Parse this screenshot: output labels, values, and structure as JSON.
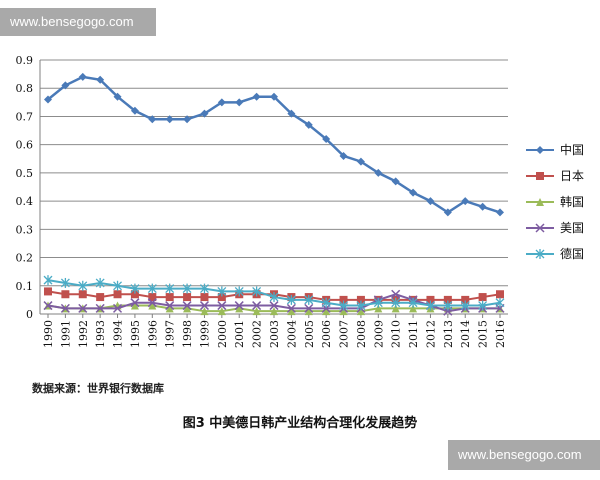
{
  "watermark": {
    "text": "www.bensegogo.com"
  },
  "source_note": "数据来源：世界银行数据库",
  "caption": "图3  中美德日韩产业结构合理化发展趋势",
  "chart_data": {
    "type": "line",
    "title": "",
    "xlabel": "",
    "ylabel": "",
    "ylim": [
      0,
      0.9
    ],
    "yticks": [
      "0",
      "0.1",
      "0.2",
      "0.3",
      "0.4",
      "0.5",
      "0.6",
      "0.7",
      "0.8",
      "0.9"
    ],
    "x": [
      "1990",
      "1991",
      "1992",
      "1993",
      "1994",
      "1995",
      "1996",
      "1997",
      "1998",
      "1999",
      "2000",
      "2001",
      "2002",
      "2003",
      "2004",
      "2005",
      "2006",
      "2007",
      "2008",
      "2009",
      "2010",
      "2011",
      "2012",
      "2013",
      "2014",
      "2015",
      "2016"
    ],
    "grid": "horizontal",
    "legend_position": "right",
    "series": [
      {
        "name": "中国",
        "color": "#4a7ab8",
        "marker": "diamond",
        "values": [
          0.76,
          0.81,
          0.84,
          0.83,
          0.77,
          0.72,
          0.69,
          0.69,
          0.69,
          0.71,
          0.75,
          0.75,
          0.77,
          0.77,
          0.71,
          0.67,
          0.62,
          0.56,
          0.54,
          0.5,
          0.47,
          0.43,
          0.4,
          0.36,
          0.4,
          0.38,
          0.36
        ]
      },
      {
        "name": "日本",
        "color": "#c0504d",
        "marker": "square",
        "values": [
          0.08,
          0.07,
          0.07,
          0.06,
          0.07,
          0.07,
          0.06,
          0.06,
          0.06,
          0.06,
          0.06,
          0.07,
          0.07,
          0.07,
          0.06,
          0.06,
          0.05,
          0.05,
          0.05,
          0.05,
          0.05,
          0.05,
          0.05,
          0.05,
          0.05,
          0.06,
          0.07
        ]
      },
      {
        "name": "韩国",
        "color": "#9bbb59",
        "marker": "triangle",
        "values": [
          0.03,
          0.02,
          0.02,
          0.02,
          0.03,
          0.03,
          0.03,
          0.02,
          0.02,
          0.01,
          0.01,
          0.02,
          0.01,
          0.01,
          0.01,
          0.01,
          0.01,
          0.01,
          0.01,
          0.02,
          0.02,
          0.02,
          0.02,
          0.02,
          0.02,
          0.02,
          0.02
        ]
      },
      {
        "name": "美国",
        "color": "#7d5ca1",
        "marker": "x",
        "values": [
          0.03,
          0.02,
          0.02,
          0.02,
          0.02,
          0.04,
          0.04,
          0.03,
          0.03,
          0.03,
          0.03,
          0.03,
          0.03,
          0.03,
          0.02,
          0.02,
          0.02,
          0.02,
          0.02,
          0.05,
          0.07,
          0.05,
          0.03,
          0.01,
          0.02,
          0.02,
          0.02
        ]
      },
      {
        "name": "德国",
        "color": "#4bacc6",
        "marker": "star",
        "values": [
          0.12,
          0.11,
          0.1,
          0.11,
          0.1,
          0.09,
          0.09,
          0.09,
          0.09,
          0.09,
          0.08,
          0.08,
          0.08,
          0.06,
          0.05,
          0.05,
          0.04,
          0.03,
          0.03,
          0.04,
          0.04,
          0.04,
          0.03,
          0.03,
          0.03,
          0.03,
          0.04
        ]
      }
    ]
  }
}
